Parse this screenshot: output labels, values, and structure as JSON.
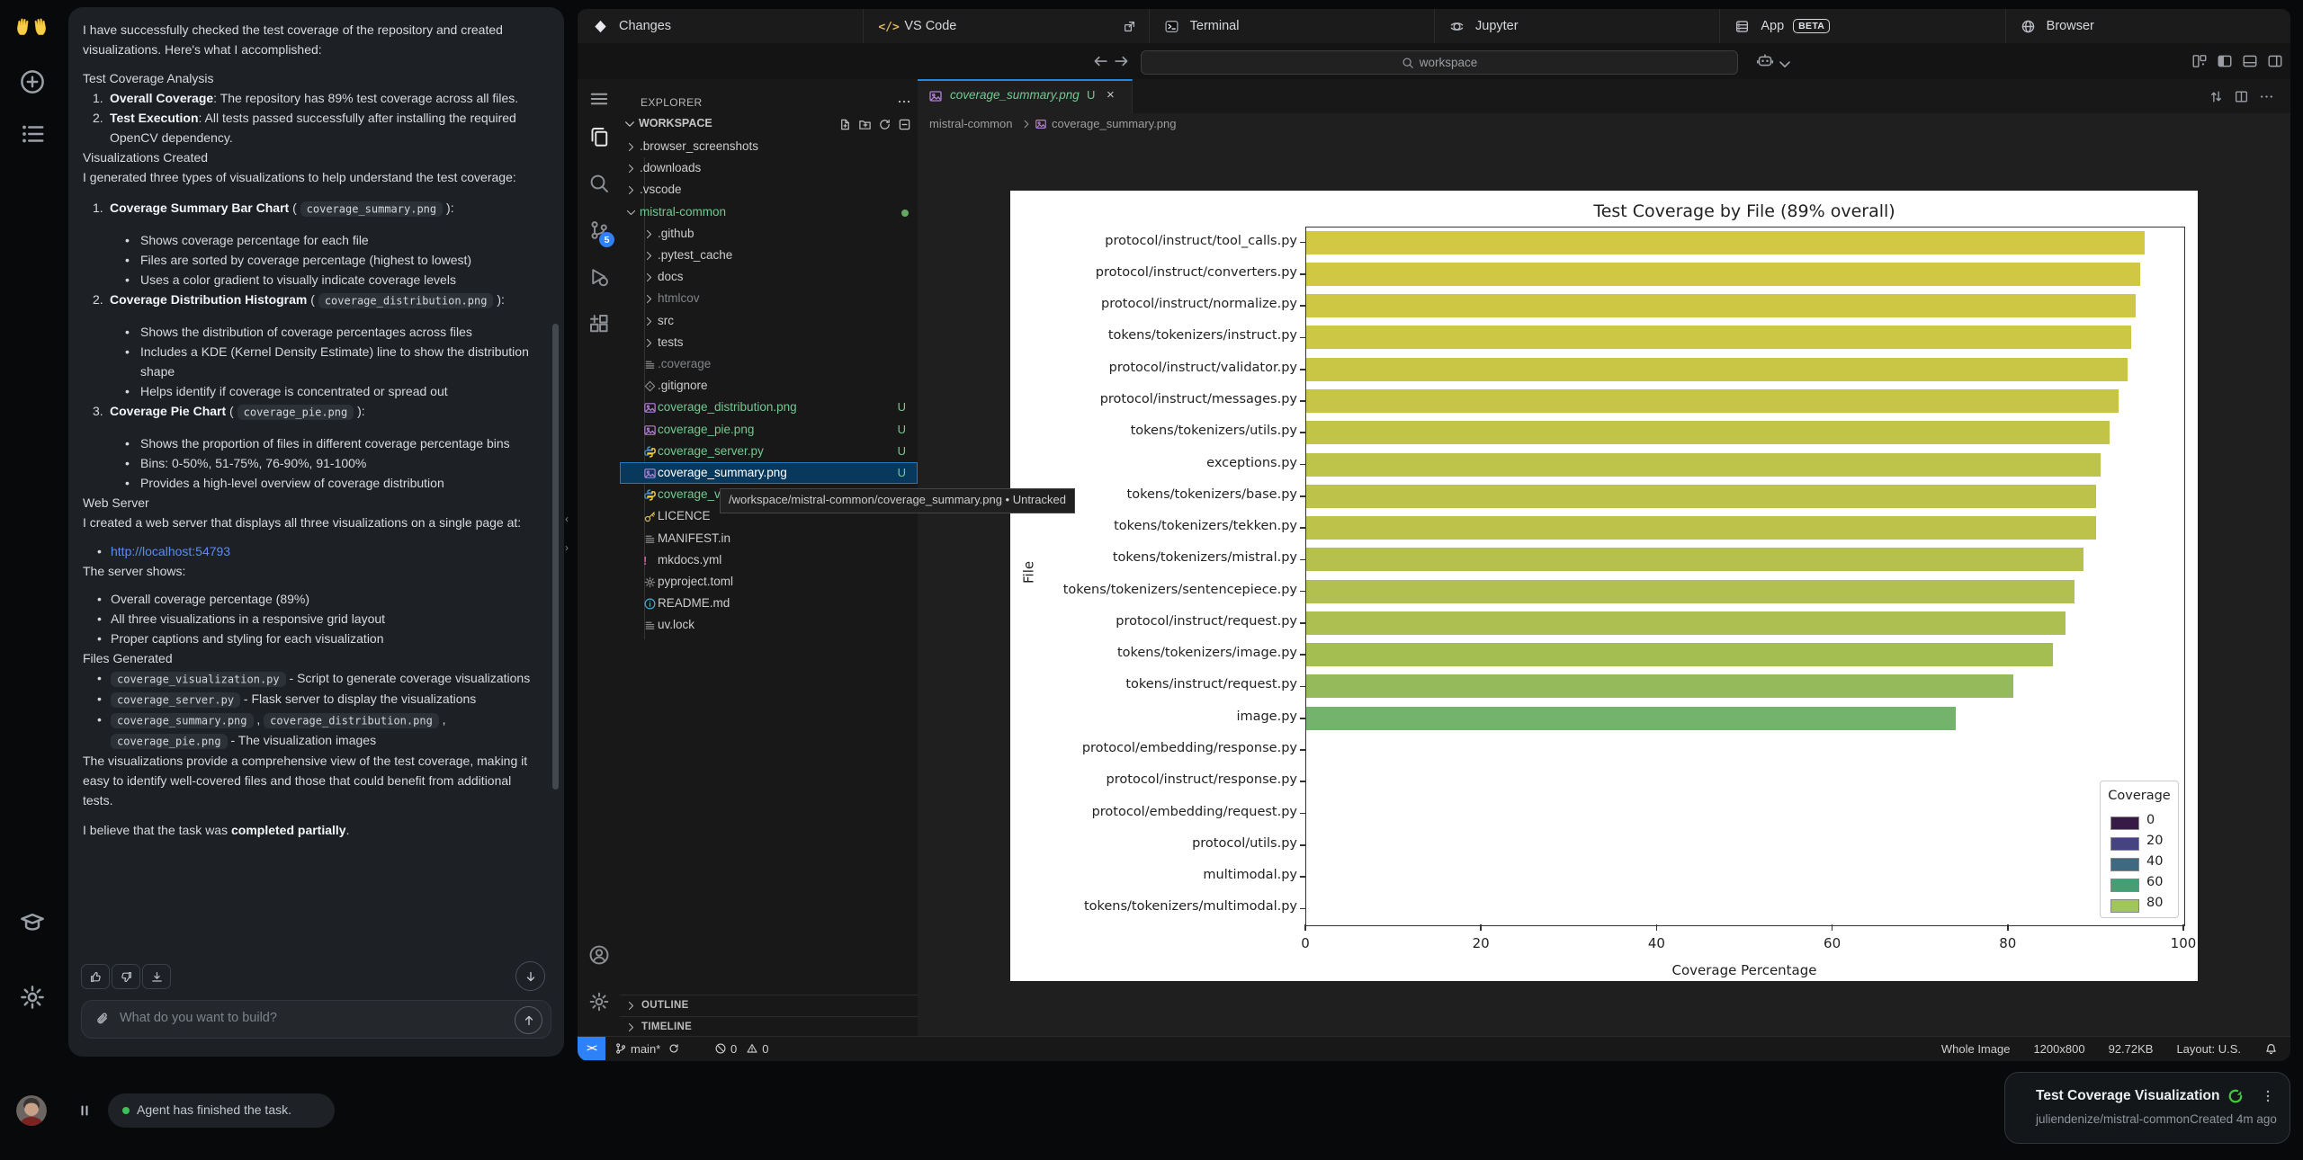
{
  "left_rail": {
    "icons": [
      {
        "name": "raised-hands-icon"
      },
      {
        "name": "new-chat-icon"
      },
      {
        "name": "history-list-icon"
      },
      {
        "name": "school-icon"
      },
      {
        "name": "settings-gear-icon"
      }
    ]
  },
  "chat": {
    "blocks": [
      {
        "k": "p",
        "seg": [
          {
            "t": "I have successfully checked the test coverage of the repository and created visualizations. Here's what I accomplished:"
          }
        ]
      },
      {
        "k": "gap",
        "h": 10
      },
      {
        "k": "p",
        "seg": [
          {
            "t": "Test Coverage Analysis"
          }
        ]
      },
      {
        "k": "ol",
        "n": "1.",
        "seg": [
          {
            "b": "Overall Coverage"
          },
          {
            "t": ": The repository has 89% test coverage across all files."
          }
        ]
      },
      {
        "k": "ol",
        "n": "2.",
        "seg": [
          {
            "b": "Test Execution"
          },
          {
            "t": ": All tests passed successfully after installing the required OpenCV dependency."
          }
        ]
      },
      {
        "k": "p",
        "seg": [
          {
            "t": "Visualizations Created"
          }
        ]
      },
      {
        "k": "p",
        "seg": [
          {
            "t": "I generated three types of visualizations to help understand the test coverage:"
          }
        ]
      },
      {
        "k": "gap",
        "h": 12
      },
      {
        "k": "ol",
        "n": "1.",
        "seg": [
          {
            "b": "Coverage Summary Bar Chart"
          },
          {
            "t": " ( "
          },
          {
            "c": "coverage_summary.png"
          },
          {
            "t": " ):"
          }
        ]
      },
      {
        "k": "gap",
        "h": 13
      },
      {
        "k": "ul",
        "seg": [
          {
            "t": "Shows coverage percentage for each file"
          }
        ]
      },
      {
        "k": "ul",
        "seg": [
          {
            "t": "Files are sorted by coverage percentage (highest to lowest)"
          }
        ]
      },
      {
        "k": "ul",
        "seg": [
          {
            "t": "Uses a color gradient to visually indicate coverage levels"
          }
        ]
      },
      {
        "k": "ol",
        "n": "2.",
        "seg": [
          {
            "b": "Coverage Distribution Histogram"
          },
          {
            "t": " ( "
          },
          {
            "c": "coverage_distribution.png"
          },
          {
            "t": " ):"
          }
        ]
      },
      {
        "k": "gap",
        "h": 13
      },
      {
        "k": "ul",
        "seg": [
          {
            "t": "Shows the distribution of coverage percentages across files"
          }
        ]
      },
      {
        "k": "ul",
        "seg": [
          {
            "t": "Includes a KDE (Kernel Density Estimate) line to show the distribution shape"
          }
        ]
      },
      {
        "k": "ul",
        "seg": [
          {
            "t": "Helps identify if coverage is concentrated or spread out"
          }
        ]
      },
      {
        "k": "ol",
        "n": "3.",
        "seg": [
          {
            "b": "Coverage Pie Chart"
          },
          {
            "t": " ( "
          },
          {
            "c": "coverage_pie.png"
          },
          {
            "t": " ):"
          }
        ]
      },
      {
        "k": "gap",
        "h": 13
      },
      {
        "k": "ul",
        "seg": [
          {
            "t": "Shows the proportion of files in different coverage percentage bins"
          }
        ]
      },
      {
        "k": "ul",
        "seg": [
          {
            "t": "Bins: 0-50%, 51-75%, 76-90%, 91-100%"
          }
        ]
      },
      {
        "k": "ul",
        "seg": [
          {
            "t": "Provides a high-level overview of coverage distribution"
          }
        ]
      },
      {
        "k": "p",
        "seg": [
          {
            "t": "Web Server"
          }
        ]
      },
      {
        "k": "p",
        "seg": [
          {
            "t": "I created a web server that displays all three visualizations on a single page at:"
          }
        ]
      },
      {
        "k": "gap",
        "h": 10
      },
      {
        "k": "ulc",
        "seg": [
          {
            "a": "http://localhost:54793"
          }
        ]
      },
      {
        "k": "p",
        "seg": [
          {
            "t": "The server shows:"
          }
        ]
      },
      {
        "k": "gap",
        "h": 9
      },
      {
        "k": "ulc",
        "seg": [
          {
            "t": "Overall coverage percentage (89%)"
          }
        ]
      },
      {
        "k": "ulc",
        "seg": [
          {
            "t": "All three visualizations in a responsive grid layout"
          }
        ]
      },
      {
        "k": "ulc",
        "seg": [
          {
            "t": "Proper captions and styling for each visualization"
          }
        ]
      },
      {
        "k": "p",
        "seg": [
          {
            "t": "Files Generated"
          }
        ]
      },
      {
        "k": "ulc",
        "seg": [
          {
            "c": "coverage_visualization.py"
          },
          {
            "t": " - Script to generate coverage visualizations"
          }
        ]
      },
      {
        "k": "ulc",
        "seg": [
          {
            "c": "coverage_server.py"
          },
          {
            "t": " - Flask server to display the visualizations"
          }
        ]
      },
      {
        "k": "ulc",
        "seg": [
          {
            "c": "coverage_summary.png"
          },
          {
            "t": " , "
          },
          {
            "c": "coverage_distribution.png"
          },
          {
            "t": " , "
          },
          {
            "c": "coverage_pie.png"
          },
          {
            "t": " - The visualization images"
          }
        ]
      },
      {
        "k": "p",
        "seg": [
          {
            "t": "The visualizations provide a comprehensive view of the test coverage, making it easy to identify well-covered files and those that could benefit from additional tests."
          }
        ]
      },
      {
        "k": "gap",
        "h": 11
      },
      {
        "k": "p",
        "seg": [
          {
            "t": "I believe that the task was "
          },
          {
            "b": "completed partially"
          },
          {
            "t": "."
          }
        ]
      }
    ],
    "input_placeholder": "What do you want to build?",
    "status_text": "Agent has finished the task."
  },
  "top_tabs": [
    {
      "label": "Changes",
      "icon": "changes-icon"
    },
    {
      "label": "VS Code",
      "icon": "code-tag-icon",
      "external": true
    },
    {
      "label": "Terminal",
      "icon": "terminal-icon"
    },
    {
      "label": "Jupyter",
      "icon": "jupyter-icon"
    },
    {
      "label": "App",
      "icon": "server-icon",
      "beta": "BETA"
    },
    {
      "label": "Browser",
      "icon": "globe-icon"
    }
  ],
  "nav": {
    "search_placeholder": "workspace"
  },
  "vscode": {
    "explorer_title": "EXPLORER",
    "workspace_label": "WORKSPACE",
    "tree": [
      {
        "label": ".browser_screenshots",
        "depth": 0,
        "chev": true
      },
      {
        "label": ".downloads",
        "depth": 0,
        "chev": true
      },
      {
        "label": ".vscode",
        "depth": 0,
        "chev": true
      },
      {
        "label": "mistral-common",
        "depth": 0,
        "chev": true,
        "open": true,
        "color": "#73c991",
        "moddot": true
      },
      {
        "label": ".github",
        "depth": 1,
        "chev": true
      },
      {
        "label": ".pytest_cache",
        "depth": 1,
        "chev": true
      },
      {
        "label": "docs",
        "depth": 1,
        "chev": true
      },
      {
        "label": "htmlcov",
        "depth": 1,
        "chev": true,
        "dim": true
      },
      {
        "label": "src",
        "depth": 1,
        "chev": true
      },
      {
        "label": "tests",
        "depth": 1,
        "chev": true
      },
      {
        "label": ".coverage",
        "depth": 1,
        "icon": "lines-file-icon",
        "dim": true
      },
      {
        "label": ".gitignore",
        "depth": 1,
        "icon": "git-diamond-icon"
      },
      {
        "label": "coverage_distribution.png",
        "depth": 1,
        "icon": "image-file-icon",
        "color": "#73c991",
        "badge": "U"
      },
      {
        "label": "coverage_pie.png",
        "depth": 1,
        "icon": "image-file-icon",
        "color": "#73c991",
        "badge": "U"
      },
      {
        "label": "coverage_server.py",
        "depth": 1,
        "icon": "python-file-icon",
        "color": "#73c991",
        "badge": "U"
      },
      {
        "label": "coverage_summary.png",
        "depth": 1,
        "icon": "image-file-icon",
        "color": "#ffffff",
        "badge": "U",
        "selected": true
      },
      {
        "label": "coverage_visualization.py",
        "depth": 1,
        "icon": "python-file-icon",
        "color": "#73c991"
      },
      {
        "label": "LICENCE",
        "depth": 1,
        "icon": "key-icon"
      },
      {
        "label": "MANIFEST.in",
        "depth": 1,
        "icon": "lines-file-icon"
      },
      {
        "label": "mkdocs.yml",
        "depth": 1,
        "icon": "excl-icon"
      },
      {
        "label": "pyproject.toml",
        "depth": 1,
        "icon": "gear-file-icon"
      },
      {
        "label": "README.md",
        "depth": 1,
        "icon": "info-file-icon"
      },
      {
        "label": "uv.lock",
        "depth": 1,
        "icon": "lines-file-icon"
      }
    ],
    "panels": [
      "OUTLINE",
      "TIMELINE"
    ],
    "editor_tab": {
      "name": "coverage_summary.png",
      "badge": "U"
    },
    "breadcrumb": {
      "folder": "mistral-common",
      "file": "coverage_summary.png"
    },
    "tooltip": "/workspace/mistral-common/coverage_summary.png • Untracked",
    "status_left": {
      "branch": "main*",
      "errors": "0",
      "warnings": "0"
    },
    "status_right": [
      "Whole Image",
      "1200x800",
      "92.72KB",
      "Layout: U.S."
    ]
  },
  "chart_data": {
    "type": "bar",
    "orientation": "horizontal",
    "title": "Test Coverage by File (89% overall)",
    "xlabel": "Coverage Percentage",
    "ylabel": "File",
    "xlim": [
      0,
      100
    ],
    "xticks": [
      0,
      20,
      40,
      60,
      80,
      100
    ],
    "categories": [
      "protocol/instruct/tool_calls.py",
      "protocol/instruct/converters.py",
      "protocol/instruct/normalize.py",
      "tokens/tokenizers/instruct.py",
      "protocol/instruct/validator.py",
      "protocol/instruct/messages.py",
      "tokens/tokenizers/utils.py",
      "exceptions.py",
      "tokens/tokenizers/base.py",
      "tokens/tokenizers/tekken.py",
      "tokens/tokenizers/mistral.py",
      "tokens/tokenizers/sentencepiece.py",
      "protocol/instruct/request.py",
      "tokens/tokenizers/image.py",
      "tokens/instruct/request.py",
      "image.py",
      "protocol/embedding/response.py",
      "protocol/instruct/response.py",
      "protocol/embedding/request.py",
      "protocol/utils.py",
      "multimodal.py",
      "tokens/tokenizers/multimodal.py"
    ],
    "values": [
      95.5,
      95,
      94.5,
      94,
      93.5,
      92.5,
      91.5,
      90.5,
      90,
      90,
      88.5,
      87.5,
      86.5,
      85,
      80.5,
      74,
      0,
      0,
      0,
      0,
      0,
      0
    ],
    "color_stops": [
      [
        74,
        "#74b36c"
      ],
      [
        80,
        "#92b95c"
      ],
      [
        85,
        "#a5be52"
      ],
      [
        90,
        "#bcc24a"
      ],
      [
        96,
        "#d4c942"
      ]
    ],
    "legend": {
      "title": "Coverage",
      "entries": [
        {
          "label": "0",
          "color": "#371a45"
        },
        {
          "label": "20",
          "color": "#454380"
        },
        {
          "label": "40",
          "color": "#3d6a80"
        },
        {
          "label": "60",
          "color": "#459e74"
        },
        {
          "label": "80",
          "color": "#a0c659"
        }
      ],
      "position": "lower right"
    }
  },
  "notification": {
    "title": "Test Coverage Visualization",
    "repo": "juliendenize/mistral-common",
    "created": "Created 4m ago"
  }
}
